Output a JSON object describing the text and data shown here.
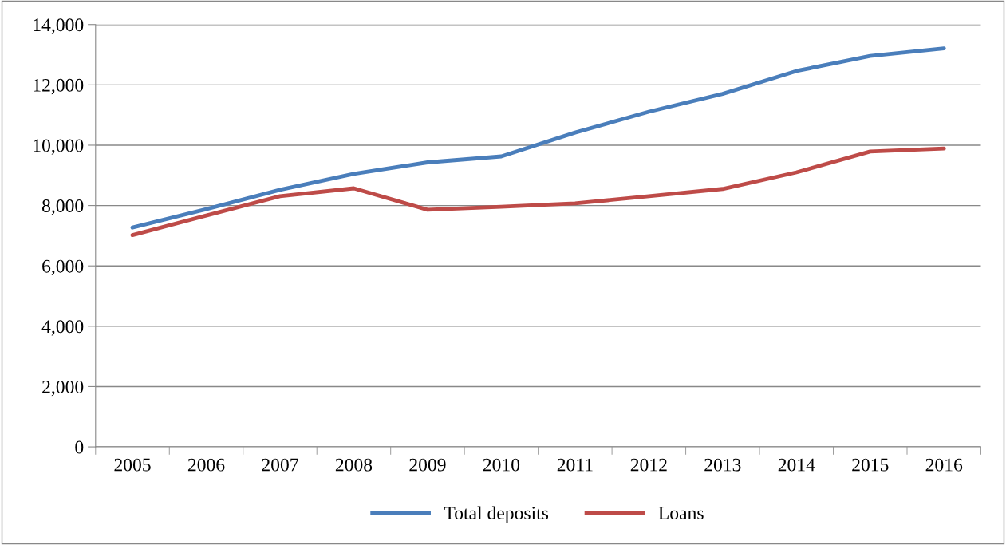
{
  "chart_data": {
    "type": "line",
    "categories": [
      "2005",
      "2006",
      "2007",
      "2008",
      "2009",
      "2010",
      "2011",
      "2012",
      "2013",
      "2014",
      "2015",
      "2016"
    ],
    "series": [
      {
        "name": "Total deposits",
        "color": "#4a7ebb",
        "values": [
          7270,
          7880,
          8520,
          9050,
          9430,
          9630,
          10420,
          11110,
          11700,
          12460,
          12960,
          13210
        ]
      },
      {
        "name": "Loans",
        "color": "#be4b48",
        "values": [
          7020,
          7670,
          8310,
          8570,
          7860,
          7960,
          8070,
          8310,
          8550,
          9100,
          9790,
          9890
        ]
      }
    ],
    "ylim": [
      0,
      14000
    ],
    "yticks": [
      {
        "value": 0,
        "label": "0"
      },
      {
        "value": 2000,
        "label": "2,000"
      },
      {
        "value": 4000,
        "label": "4,000"
      },
      {
        "value": 6000,
        "label": "6,000"
      },
      {
        "value": 8000,
        "label": "8,000"
      },
      {
        "value": 10000,
        "label": "10,000"
      },
      {
        "value": 12000,
        "label": "12,000"
      },
      {
        "value": 14000,
        "label": "14,000"
      }
    ],
    "grid": "y",
    "legend": "bottom",
    "marker": "none",
    "line_style": "solid"
  }
}
